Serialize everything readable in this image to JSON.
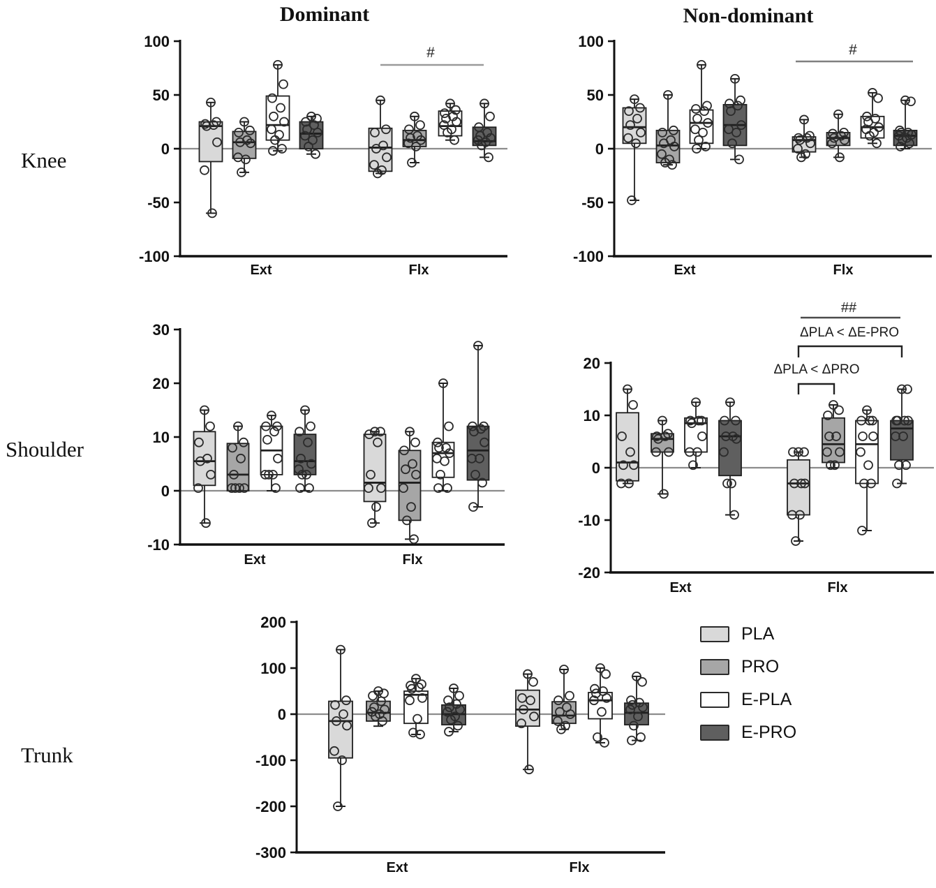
{
  "figure": {
    "titles": {
      "left": "Dominant",
      "right": "Non-dominant"
    },
    "rows": [
      {
        "label": "Knee"
      },
      {
        "label": "Shoulder"
      },
      {
        "label": "Trunk"
      }
    ],
    "legend": {
      "items": [
        {
          "label": "PLA",
          "color": "#d9d9d9"
        },
        {
          "label": "PRO",
          "color": "#a6a6a6"
        },
        {
          "label": "E-PLA",
          "color": "#ffffff"
        },
        {
          "label": "E-PRO",
          "color": "#5f5f5f"
        }
      ]
    },
    "colors": {
      "box_stroke": "#1f1f1f",
      "zero_line": "#8c8c8c",
      "axis": "#111111",
      "point_stroke": "#2b2b2b",
      "sig_line_light": "#9a9a9a",
      "sig_line_dark": "#4a4a4a",
      "bracket": "#222222"
    }
  },
  "chart_data": [
    {
      "id": "knee_dominant",
      "type": "box",
      "region": "Knee",
      "side": "Dominant",
      "ylim": [
        -100,
        100
      ],
      "yticks": [
        100,
        50,
        0,
        -50,
        -100
      ],
      "categories": [
        "Ext",
        "Flx"
      ],
      "groups": [
        "PLA",
        "PRO",
        "E-PLA",
        "E-PRO"
      ],
      "boxes": [
        {
          "category": "Ext",
          "group": "PLA",
          "whislo": -60,
          "q1": -12,
          "med": 21,
          "q3": 25,
          "whishi": 43,
          "points": [
            43,
            25,
            23,
            22,
            21,
            6,
            -20,
            -60
          ]
        },
        {
          "category": "Ext",
          "group": "PRO",
          "whislo": -22,
          "q1": -9,
          "med": 6,
          "q3": 16,
          "whishi": 25,
          "points": [
            25,
            17,
            15,
            8,
            6,
            5,
            -8,
            -10,
            -22
          ]
        },
        {
          "category": "Ext",
          "group": "E-PLA",
          "whislo": -2,
          "q1": 8,
          "med": 22,
          "q3": 49,
          "whishi": 78,
          "points": [
            78,
            60,
            47,
            38,
            30,
            25,
            18,
            13,
            8,
            0,
            -2
          ]
        },
        {
          "category": "Ext",
          "group": "E-PRO",
          "whislo": -5,
          "q1": 0,
          "med": 14,
          "q3": 25,
          "whishi": 30,
          "points": [
            30,
            28,
            25,
            22,
            18,
            15,
            12,
            8,
            2,
            -5
          ]
        },
        {
          "category": "Flx",
          "group": "PLA",
          "whislo": -23,
          "q1": -21,
          "med": 1,
          "q3": 19,
          "whishi": 45,
          "points": [
            45,
            18,
            15,
            3,
            0,
            -8,
            -15,
            -20,
            -23
          ]
        },
        {
          "category": "Flx",
          "group": "PRO",
          "whislo": -13,
          "q1": 2,
          "med": 8,
          "q3": 17,
          "whishi": 30,
          "points": [
            30,
            22,
            18,
            12,
            10,
            8,
            5,
            2,
            -13
          ]
        },
        {
          "category": "Flx",
          "group": "E-PLA",
          "whislo": 8,
          "q1": 12,
          "med": 21,
          "q3": 35,
          "whishi": 42,
          "points": [
            42,
            36,
            33,
            30,
            28,
            25,
            22,
            18,
            15,
            8
          ]
        },
        {
          "category": "Flx",
          "group": "E-PRO",
          "whislo": -8,
          "q1": 3,
          "med": 7,
          "q3": 20,
          "whishi": 42,
          "points": [
            42,
            30,
            20,
            15,
            12,
            10,
            8,
            6,
            3,
            -8
          ]
        }
      ],
      "annotations": [
        {
          "kind": "sig-line",
          "label": "#",
          "category": "Flx"
        }
      ]
    },
    {
      "id": "knee_nondominant",
      "type": "box",
      "region": "Knee",
      "side": "Non-dominant",
      "ylim": [
        -100,
        100
      ],
      "yticks": [
        100,
        50,
        0,
        -50,
        -100
      ],
      "categories": [
        "Ext",
        "Flx"
      ],
      "groups": [
        "PLA",
        "PRO",
        "E-PLA",
        "E-PRO"
      ],
      "boxes": [
        {
          "category": "Ext",
          "group": "PLA",
          "whislo": -48,
          "q1": 5,
          "med": 20,
          "q3": 38,
          "whishi": 46,
          "points": [
            46,
            38,
            35,
            28,
            22,
            15,
            10,
            5,
            -48
          ]
        },
        {
          "category": "Ext",
          "group": "PRO",
          "whislo": -15,
          "q1": -13,
          "med": 3,
          "q3": 17,
          "whishi": 50,
          "points": [
            50,
            17,
            15,
            8,
            5,
            2,
            -5,
            -10,
            -13,
            -15
          ]
        },
        {
          "category": "Ext",
          "group": "E-PLA",
          "whislo": 0,
          "q1": 5,
          "med": 24,
          "q3": 36,
          "whishi": 78,
          "points": [
            78,
            40,
            37,
            35,
            28,
            24,
            18,
            15,
            8,
            2,
            0
          ]
        },
        {
          "category": "Ext",
          "group": "E-PRO",
          "whislo": -10,
          "q1": 3,
          "med": 22,
          "q3": 41,
          "whishi": 65,
          "points": [
            65,
            45,
            42,
            40,
            35,
            22,
            18,
            15,
            5,
            -10
          ]
        },
        {
          "category": "Flx",
          "group": "PLA",
          "whislo": -8,
          "q1": -3,
          "med": 8,
          "q3": 11,
          "whishi": 27,
          "points": [
            27,
            12,
            10,
            10,
            8,
            5,
            0,
            -5,
            -8
          ]
        },
        {
          "category": "Flx",
          "group": "PRO",
          "whislo": -8,
          "q1": 3,
          "med": 10,
          "q3": 15,
          "whishi": 32,
          "points": [
            32,
            15,
            14,
            12,
            10,
            8,
            5,
            -8
          ]
        },
        {
          "category": "Flx",
          "group": "E-PLA",
          "whislo": 5,
          "q1": 10,
          "med": 20,
          "q3": 30,
          "whishi": 52,
          "points": [
            52,
            47,
            30,
            28,
            25,
            20,
            18,
            15,
            12,
            5
          ]
        },
        {
          "category": "Flx",
          "group": "E-PRO",
          "whislo": 0,
          "q1": 3,
          "med": 12,
          "q3": 17,
          "whishi": 45,
          "points": [
            45,
            44,
            17,
            15,
            15,
            13,
            12,
            10,
            8,
            5,
            2
          ]
        }
      ],
      "annotations": [
        {
          "kind": "sig-line",
          "label": "#",
          "category": "Flx"
        }
      ]
    },
    {
      "id": "shoulder_dominant",
      "type": "box",
      "region": "Shoulder",
      "side": "Dominant",
      "ylim": [
        -10,
        30
      ],
      "yticks": [
        30,
        20,
        10,
        0,
        -10
      ],
      "categories": [
        "Ext",
        "Flx"
      ],
      "groups": [
        "PLA",
        "PRO",
        "E-PLA",
        "E-PRO"
      ],
      "boxes": [
        {
          "category": "Ext",
          "group": "PLA",
          "whislo": -6,
          "q1": 1,
          "med": 5.5,
          "q3": 11,
          "whishi": 15,
          "points": [
            15,
            12,
            9,
            6,
            5.5,
            3,
            0.5,
            -6
          ]
        },
        {
          "category": "Ext",
          "group": "PRO",
          "whislo": 0,
          "q1": 0,
          "med": 3,
          "q3": 8.8,
          "whishi": 12,
          "points": [
            12,
            9,
            8,
            6,
            3,
            0.5,
            0.5,
            0.5,
            0.5
          ]
        },
        {
          "category": "Ext",
          "group": "E-PLA",
          "whislo": 0,
          "q1": 3,
          "med": 7.5,
          "q3": 12,
          "whishi": 14,
          "points": [
            14,
            12,
            12,
            11,
            9.5,
            6,
            3,
            3,
            3,
            0.5
          ]
        },
        {
          "category": "Ext",
          "group": "E-PRO",
          "whislo": 0,
          "q1": 3,
          "med": 5.5,
          "q3": 10.5,
          "whishi": 15,
          "points": [
            15,
            12,
            11,
            9,
            6,
            5,
            4,
            3,
            3,
            0.5,
            0.5
          ]
        },
        {
          "category": "Flx",
          "group": "PLA",
          "whislo": -6,
          "q1": -2,
          "med": 1.5,
          "q3": 10.5,
          "whishi": 11,
          "points": [
            11,
            11,
            10.5,
            9,
            3,
            0.5,
            0.5,
            -3,
            -6
          ]
        },
        {
          "category": "Flx",
          "group": "PRO",
          "whislo": -9,
          "q1": -5.5,
          "med": 1.5,
          "q3": 7.5,
          "whishi": 11,
          "points": [
            11,
            9,
            7.5,
            5,
            4,
            3,
            0.5,
            -3,
            -5.5,
            -9
          ]
        },
        {
          "category": "Flx",
          "group": "E-PLA",
          "whislo": 0,
          "q1": 2.5,
          "med": 7,
          "q3": 9,
          "whishi": 20,
          "points": [
            20,
            12,
            9,
            8,
            8,
            7,
            6,
            5.5,
            3,
            0.5,
            0.5
          ]
        },
        {
          "category": "Flx",
          "group": "E-PRO",
          "whislo": -3,
          "q1": 2,
          "med": 7.5,
          "q3": 12,
          "whishi": 27,
          "points": [
            27,
            12,
            12,
            11.5,
            11,
            9,
            6,
            6,
            3,
            1.5,
            -3
          ]
        }
      ],
      "annotations": []
    },
    {
      "id": "shoulder_nondominant",
      "type": "box",
      "region": "Shoulder",
      "side": "Non-dominant",
      "ylim": [
        -20,
        20
      ],
      "yticks": [
        20,
        10,
        0,
        -10,
        -20
      ],
      "categories": [
        "Ext",
        "Flx"
      ],
      "groups": [
        "PLA",
        "PRO",
        "E-PLA",
        "E-PRO"
      ],
      "boxes": [
        {
          "category": "Ext",
          "group": "PLA",
          "whislo": -3,
          "q1": -2.5,
          "med": 1,
          "q3": 10.5,
          "whishi": 15,
          "points": [
            15,
            12,
            6,
            3,
            0.5,
            0.5,
            -3,
            -3
          ]
        },
        {
          "category": "Ext",
          "group": "PRO",
          "whislo": -5,
          "q1": 3,
          "med": 5.5,
          "q3": 6.5,
          "whishi": 9,
          "points": [
            9,
            6.5,
            6,
            6,
            5.5,
            3,
            3,
            -5
          ]
        },
        {
          "category": "Ext",
          "group": "E-PLA",
          "whislo": 0,
          "q1": 3,
          "med": 8.5,
          "q3": 9.5,
          "whishi": 12.5,
          "points": [
            12.5,
            9,
            9,
            9,
            8.5,
            6,
            3,
            3,
            0.5
          ]
        },
        {
          "category": "Ext",
          "group": "E-PRO",
          "whislo": -9,
          "q1": -1.5,
          "med": 6,
          "q3": 9,
          "whishi": 12.5,
          "points": [
            12.5,
            9,
            9,
            6,
            6,
            5.5,
            3,
            -3,
            -3,
            -9
          ]
        },
        {
          "category": "Flx",
          "group": "PLA",
          "whislo": -14,
          "q1": -9,
          "med": -3,
          "q3": 1.5,
          "whishi": 3,
          "points": [
            3,
            3,
            3,
            -3,
            -3,
            -3,
            -9,
            -9,
            -14
          ]
        },
        {
          "category": "Flx",
          "group": "PRO",
          "whislo": 0,
          "q1": 1,
          "med": 4.5,
          "q3": 9.5,
          "whishi": 12,
          "points": [
            12,
            11,
            10,
            6,
            6,
            3,
            3,
            0.5,
            0.5
          ]
        },
        {
          "category": "Flx",
          "group": "E-PLA",
          "whislo": -12,
          "q1": -3,
          "med": 4.5,
          "q3": 9,
          "whishi": 11,
          "points": [
            11,
            9,
            9,
            9,
            6,
            6,
            3,
            0.5,
            -3,
            -3,
            -12
          ]
        },
        {
          "category": "Flx",
          "group": "E-PRO",
          "whislo": -3,
          "q1": 1.5,
          "med": 7.5,
          "q3": 9,
          "whishi": 15,
          "points": [
            15,
            15,
            9,
            9,
            9,
            9,
            6,
            6,
            0.5,
            0.5,
            -3
          ]
        }
      ],
      "annotations": [
        {
          "kind": "sig-line",
          "label": "##",
          "category": "Flx"
        },
        {
          "kind": "text",
          "label": "ΔPLA < ΔE-PRO"
        },
        {
          "kind": "bracket",
          "category": "Flx",
          "from": "PLA",
          "to": "E-PRO"
        },
        {
          "kind": "text",
          "label": "ΔPLA < ΔPRO"
        },
        {
          "kind": "bracket",
          "category": "Flx",
          "from": "PLA",
          "to": "PRO"
        }
      ]
    },
    {
      "id": "trunk",
      "type": "box",
      "region": "Trunk",
      "side": "",
      "ylim": [
        -300,
        200
      ],
      "yticks": [
        200,
        100,
        0,
        -100,
        -200,
        -300
      ],
      "categories": [
        "Ext",
        "Flx"
      ],
      "groups": [
        "PLA",
        "PRO",
        "E-PLA",
        "E-PRO"
      ],
      "boxes": [
        {
          "category": "Ext",
          "group": "PLA",
          "whislo": -200,
          "q1": -95,
          "med": -15,
          "q3": 28,
          "whishi": 140,
          "points": [
            140,
            30,
            20,
            0,
            -15,
            -25,
            -80,
            -100,
            -200
          ]
        },
        {
          "category": "Ext",
          "group": "PRO",
          "whislo": -26,
          "q1": -15,
          "med": 3,
          "q3": 28,
          "whishi": 50,
          "points": [
            50,
            45,
            40,
            28,
            15,
            10,
            5,
            0,
            -5,
            -15
          ]
        },
        {
          "category": "Ext",
          "group": "E-PLA",
          "whislo": -44,
          "q1": -20,
          "med": 42,
          "q3": 50,
          "whishi": 77,
          "points": [
            77,
            65,
            62,
            58,
            55,
            35,
            30,
            -10,
            -40,
            -44
          ]
        },
        {
          "category": "Ext",
          "group": "E-PRO",
          "whislo": -38,
          "q1": -23,
          "med": 0,
          "q3": 20,
          "whishi": 56,
          "points": [
            56,
            40,
            30,
            22,
            15,
            10,
            5,
            -5,
            -12,
            -25,
            -38
          ]
        },
        {
          "category": "Flx",
          "group": "PLA",
          "whislo": -120,
          "q1": -26,
          "med": 10,
          "q3": 52,
          "whishi": 87,
          "points": [
            87,
            70,
            35,
            30,
            10,
            -5,
            -20,
            -120
          ]
        },
        {
          "category": "Flx",
          "group": "PRO",
          "whislo": -33,
          "q1": -20,
          "med": -3,
          "q3": 27,
          "whishi": 97,
          "points": [
            97,
            40,
            30,
            15,
            5,
            0,
            -15,
            -25,
            -33
          ]
        },
        {
          "category": "Flx",
          "group": "E-PLA",
          "whislo": -62,
          "q1": -10,
          "med": 30,
          "q3": 47,
          "whishi": 100,
          "points": [
            100,
            87,
            55,
            50,
            45,
            35,
            30,
            5,
            -50,
            -62
          ]
        },
        {
          "category": "Flx",
          "group": "E-PRO",
          "whislo": -57,
          "q1": -23,
          "med": 3,
          "q3": 24,
          "whishi": 82,
          "points": [
            82,
            70,
            30,
            25,
            20,
            15,
            10,
            -5,
            -25,
            -50,
            -57
          ]
        }
      ],
      "annotations": []
    }
  ]
}
